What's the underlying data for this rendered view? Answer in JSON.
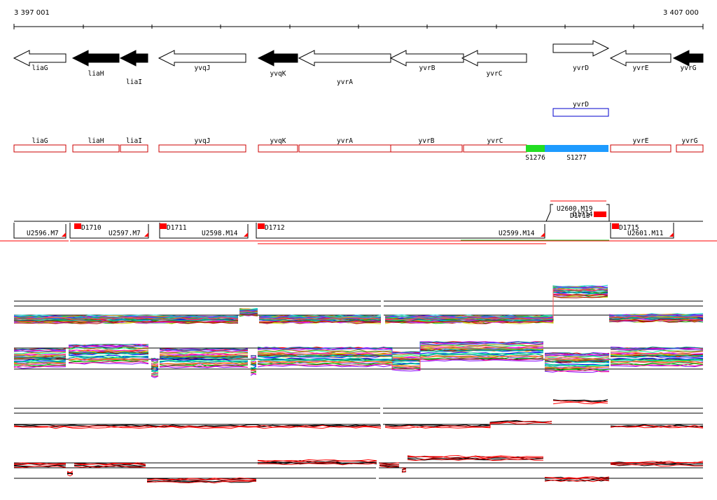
{
  "coords": {
    "start": "3 397 001",
    "end": "3 407 000"
  },
  "genes": [
    {
      "name": "liaG",
      "x1": 20,
      "x2": 94,
      "dir": "left",
      "fill": "white"
    },
    {
      "name": "liaH",
      "x1": 104,
      "x2": 170,
      "dir": "left",
      "fill": "black"
    },
    {
      "name": "liaI",
      "x1": 172,
      "x2": 211,
      "dir": "left",
      "fill": "black"
    },
    {
      "name": "yvqJ",
      "x1": 227,
      "x2": 351,
      "dir": "left",
      "fill": "white"
    },
    {
      "name": "yvqK",
      "x1": 369,
      "x2": 425,
      "dir": "left",
      "fill": "black"
    },
    {
      "name": "yvrA",
      "x1": 427,
      "x2": 558,
      "dir": "left",
      "fill": "white"
    },
    {
      "name": "yvrB",
      "x1": 558,
      "x2": 662,
      "dir": "left",
      "fill": "white"
    },
    {
      "name": "yvrC",
      "x1": 660,
      "x2": 752,
      "dir": "left",
      "fill": "white"
    },
    {
      "name": "yvrD",
      "x1": 790,
      "x2": 869,
      "dir": "right",
      "fill": "white"
    },
    {
      "name": "yvrE",
      "x1": 872,
      "x2": 958,
      "dir": "left",
      "fill": "white"
    },
    {
      "name": "yvrG",
      "x1": 962,
      "x2": 1004,
      "dir": "left",
      "fill": "black"
    }
  ],
  "highlight_gene": {
    "name": "yvrD",
    "x1": 790,
    "x2": 869
  },
  "annotation_boxes": [
    {
      "name": "liaG",
      "x1": 20,
      "x2": 94
    },
    {
      "name": "liaH",
      "x1": 104,
      "x2": 170
    },
    {
      "name": "liaI",
      "x1": 172,
      "x2": 211
    },
    {
      "name": "yvqJ",
      "x1": 227,
      "x2": 351
    },
    {
      "name": "yvqK",
      "x1": 369,
      "x2": 425
    },
    {
      "name": "yvrA",
      "x1": 427,
      "x2": 558
    },
    {
      "name": "yvrB",
      "x1": 558,
      "x2": 660
    },
    {
      "name": "yvrC",
      "x1": 662,
      "x2": 752
    },
    {
      "name": "yvrE",
      "x1": 872,
      "x2": 958
    },
    {
      "name": "yvrG",
      "x1": 966,
      "x2": 1004
    }
  ],
  "segments": [
    {
      "label": "S1276",
      "x1": 751,
      "x2": 778,
      "color": "#22dd22"
    },
    {
      "label": "S1277",
      "x1": 778,
      "x2": 869,
      "color": "#1e9bff"
    }
  ],
  "transcripts": [
    {
      "label": "U2596.M7"
    },
    {
      "label": "D1710"
    },
    {
      "label": "U2597.M7"
    },
    {
      "label": "D1711"
    },
    {
      "label": "U2598.M14"
    },
    {
      "label": "D1712"
    },
    {
      "label": "U2599.M14"
    },
    {
      "label": "U2600.M19"
    },
    {
      "label": "D1713"
    },
    {
      "label": "D1714"
    },
    {
      "label": "D1715"
    },
    {
      "label": "U2601.M11"
    }
  ],
  "colors": {
    "transcript": "#ff0000",
    "segment_box": "#cc0000",
    "highlight": "#0000cc"
  }
}
